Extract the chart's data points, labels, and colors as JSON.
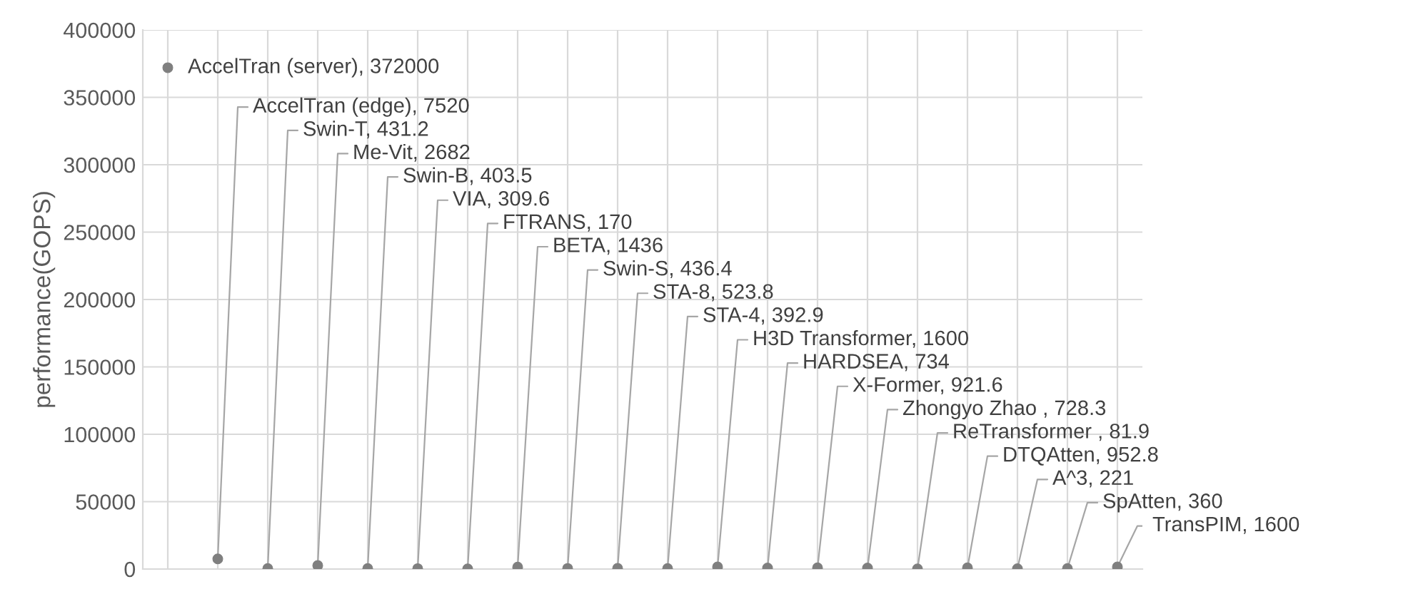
{
  "chart_data": {
    "type": "scatter",
    "ylabel": "performance(GOPS)",
    "categories": [
      null,
      null,
      null,
      null,
      null,
      null,
      null,
      null,
      null,
      null,
      null,
      null,
      null,
      null,
      null,
      null,
      null,
      null,
      null,
      null
    ],
    "values": [
      372000,
      7520,
      431.2,
      2682,
      403.5,
      309.6,
      170,
      1436,
      436.4,
      523.8,
      392.9,
      1600,
      734,
      921.6,
      728.3,
      81.9,
      952.8,
      221,
      360,
      1600
    ],
    "value_labels": [
      "AccelTran (server), 372000",
      "AccelTran (edge), 7520",
      "Swin-T, 431.2",
      "Me-Vit, 2682",
      "Swin-B, 403.5",
      "VIA, 309.6",
      "FTRANS, 170",
      "BETA, 1436",
      "Swin-S, 436.4",
      "STA-8, 523.8",
      "STA-4, 392.9",
      "H3D Transformer, 1600",
      "HARDSEA, 734",
      "X-Former, 921.6",
      "Zhongyo Zhao , 728.3",
      "ReTransformer , 81.9",
      "DTQAtten, 952.8",
      "A^3, 221",
      "SpAtten, 360",
      "TransPIM, 1600"
    ],
    "color": "#7f7f7f",
    "ylim": [
      0,
      400000
    ],
    "yticks": [
      0,
      50000,
      100000,
      150000,
      200000,
      250000,
      300000,
      350000,
      400000
    ],
    "grid": true,
    "tick_labels": "y",
    "marker": "circle"
  }
}
